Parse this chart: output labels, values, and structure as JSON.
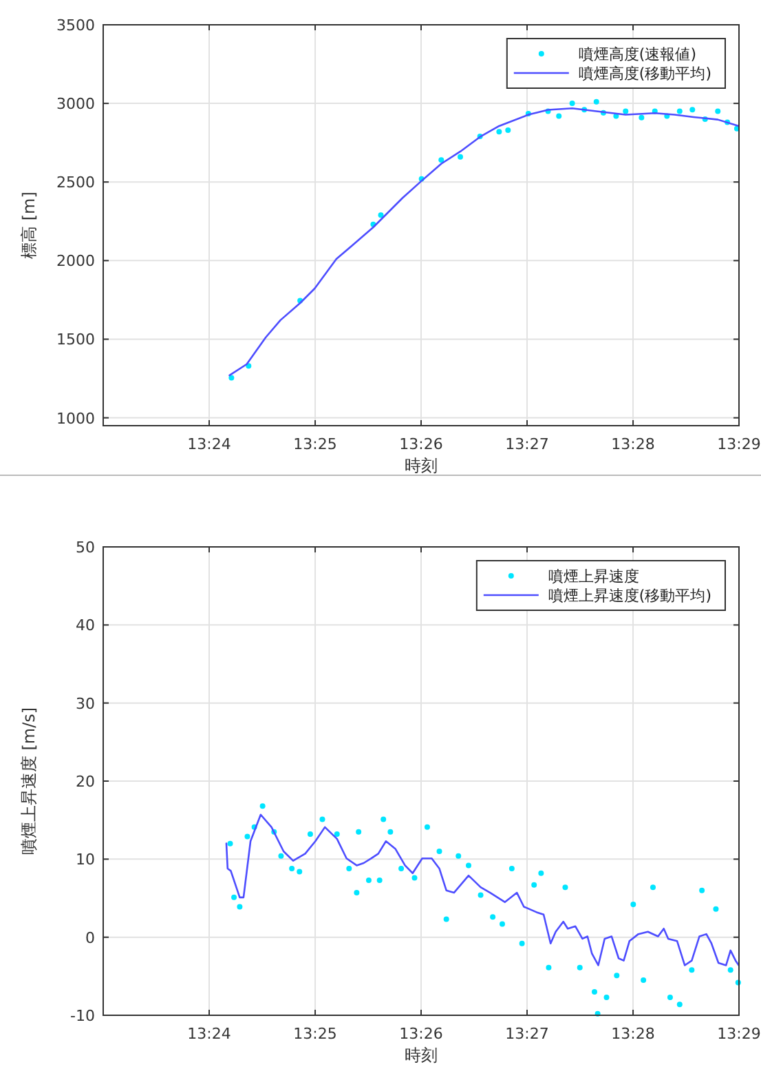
{
  "chart_data": [
    {
      "type": "line",
      "xlabel": "時刻",
      "ylabel": "標高 [m]",
      "xlim": [
        13.38333,
        13.48333
      ],
      "xticks": [
        {
          "value": 13.4,
          "label": "13:24"
        },
        {
          "value": 13.41667,
          "label": "13:25"
        },
        {
          "value": 13.43333,
          "label": "13:26"
        },
        {
          "value": 13.45,
          "label": "13:27"
        },
        {
          "value": 13.46667,
          "label": "13:28"
        },
        {
          "value": 13.48333,
          "label": "13:29"
        }
      ],
      "ylim": [
        950,
        3500
      ],
      "yticks": [
        1000,
        1500,
        2000,
        2500,
        3000,
        3500
      ],
      "grid": true,
      "legend": "top right",
      "series": [
        {
          "name": "噴煙高度(速報値)",
          "type": "scatter",
          "marker": "circle",
          "color": "#00e5ff",
          "x": [
            13.4035,
            13.4062,
            13.4143,
            13.4258,
            13.427,
            13.4334,
            13.4365,
            13.4395,
            13.4426,
            13.4456,
            13.447,
            13.4502,
            13.4533,
            13.455,
            13.4571,
            13.459,
            13.4609,
            13.462,
            13.464,
            13.4655,
            13.468,
            13.4701,
            13.472,
            13.474,
            13.476,
            13.478,
            13.48,
            13.4815,
            13.483
          ],
          "values": [
            1255,
            1330,
            1745,
            2230,
            2290,
            2520,
            2640,
            2660,
            2790,
            2820,
            2830,
            2935,
            2950,
            2920,
            3000,
            2960,
            3010,
            2940,
            2920,
            2950,
            2910,
            2950,
            2920,
            2950,
            2960,
            2900,
            2950,
            2880,
            2840
          ]
        },
        {
          "name": "噴煙高度(移動平均)",
          "type": "line",
          "color": "#4d4dff",
          "x": [
            13.4032,
            13.4059,
            13.4089,
            13.4112,
            13.4143,
            13.4166,
            13.42,
            13.4227,
            13.4258,
            13.4281,
            13.4304,
            13.4334,
            13.4365,
            13.4395,
            13.4426,
            13.4456,
            13.4502,
            13.4533,
            13.4571,
            13.4609,
            13.4655,
            13.4701,
            13.4732,
            13.4762,
            13.48,
            13.4833
          ],
          "values": [
            1270,
            1341,
            1512,
            1621,
            1730,
            1823,
            2010,
            2103,
            2212,
            2305,
            2398,
            2507,
            2616,
            2694,
            2787,
            2856,
            2928,
            2959,
            2969,
            2950,
            2928,
            2938,
            2928,
            2913,
            2897,
            2856
          ]
        }
      ]
    },
    {
      "type": "line",
      "xlabel": "時刻",
      "ylabel": "噴煙上昇速度 [m/s]",
      "xlim": [
        13.38333,
        13.48333
      ],
      "xticks": [
        {
          "value": 13.4,
          "label": "13:24"
        },
        {
          "value": 13.41667,
          "label": "13:25"
        },
        {
          "value": 13.43333,
          "label": "13:26"
        },
        {
          "value": 13.45,
          "label": "13:27"
        },
        {
          "value": 13.46667,
          "label": "13:28"
        },
        {
          "value": 13.48333,
          "label": "13:29"
        }
      ],
      "ylim": [
        -10,
        50
      ],
      "yticks": [
        -10,
        0,
        10,
        20,
        30,
        40,
        50
      ],
      "grid": true,
      "legend": "top right",
      "series": [
        {
          "name": "噴煙上昇速度",
          "type": "scatter",
          "marker": "circle",
          "color": "#00e5ff",
          "x": [
            13.4033,
            13.4039,
            13.4048,
            13.406,
            13.4071,
            13.4084,
            13.4102,
            13.4113,
            13.413,
            13.4142,
            13.4159,
            13.4178,
            13.4201,
            13.422,
            13.4232,
            13.4235,
            13.4251,
            13.4268,
            13.4274,
            13.4285,
            13.4302,
            13.4323,
            13.4343,
            13.4362,
            13.4373,
            13.4392,
            13.4408,
            13.4427,
            13.4446,
            13.4461,
            13.4476,
            13.4492,
            13.4511,
            13.4522,
            13.4534,
            13.456,
            13.4583,
            13.4606,
            13.4611,
            13.4625,
            13.4641,
            13.4667,
            13.4683,
            13.4698,
            13.4725,
            13.474,
            13.4759,
            13.4775,
            13.4797,
            13.482,
            13.4832
          ],
          "values": [
            12.0,
            5.1,
            3.9,
            12.9,
            14.1,
            16.8,
            13.5,
            10.4,
            8.8,
            8.4,
            13.2,
            15.1,
            13.2,
            8.8,
            5.7,
            13.5,
            7.3,
            7.3,
            15.1,
            13.5,
            8.8,
            7.6,
            14.1,
            11.0,
            2.3,
            10.4,
            9.2,
            5.4,
            2.6,
            1.7,
            8.8,
            -0.8,
            6.7,
            8.2,
            -3.9,
            6.4,
            -3.9,
            -7.0,
            -9.8,
            -7.7,
            -4.9,
            4.2,
            -5.5,
            6.4,
            -7.7,
            -8.6,
            -4.2,
            6.0,
            3.6,
            -4.2,
            -5.8
          ]
        },
        {
          "name": "噴煙上昇速度(移動平均)",
          "type": "line",
          "color": "#4d4dff",
          "x": [
            13.4027,
            13.4029,
            13.4034,
            13.4048,
            13.4054,
            13.4065,
            13.4081,
            13.4098,
            13.4117,
            13.4132,
            13.4151,
            13.4167,
            13.4182,
            13.4201,
            13.4216,
            13.4232,
            13.4243,
            13.4255,
            13.4266,
            13.4278,
            13.4293,
            13.4308,
            13.432,
            13.4335,
            13.435,
            13.4362,
            13.4373,
            13.4385,
            13.4408,
            13.4427,
            13.4442,
            13.4465,
            13.4484,
            13.4495,
            13.4515,
            13.4526,
            13.4537,
            13.4545,
            13.4557,
            13.4564,
            13.4576,
            13.4587,
            13.4595,
            13.4602,
            13.4612,
            13.4622,
            13.4633,
            13.4644,
            13.4652,
            13.4661,
            13.4675,
            13.469,
            13.4706,
            13.4715,
            13.4722,
            13.4736,
            13.4748,
            13.4759,
            13.4771,
            13.4782,
            13.479,
            13.4801,
            13.4813,
            13.482,
            13.4828,
            13.4833
          ],
          "values": [
            12.0,
            8.8,
            8.5,
            5.1,
            5.1,
            12.3,
            15.7,
            14.1,
            11.0,
            9.8,
            10.7,
            12.3,
            14.1,
            12.6,
            10.1,
            9.2,
            9.5,
            10.1,
            10.7,
            12.3,
            11.3,
            9.2,
            8.2,
            10.1,
            10.1,
            8.8,
            6.0,
            5.7,
            7.9,
            6.4,
            5.7,
            4.5,
            5.7,
            3.9,
            3.2,
            2.9,
            -0.8,
            0.7,
            2.0,
            1.1,
            1.4,
            -0.2,
            0.1,
            -2.1,
            -3.6,
            -0.2,
            0.1,
            -2.7,
            -3.0,
            -0.5,
            0.4,
            0.7,
            0.1,
            1.1,
            -0.2,
            -0.5,
            -3.6,
            -3.0,
            0.1,
            0.4,
            -0.8,
            -3.3,
            -3.6,
            -1.7,
            -3.0,
            -3.6
          ]
        }
      ]
    }
  ]
}
